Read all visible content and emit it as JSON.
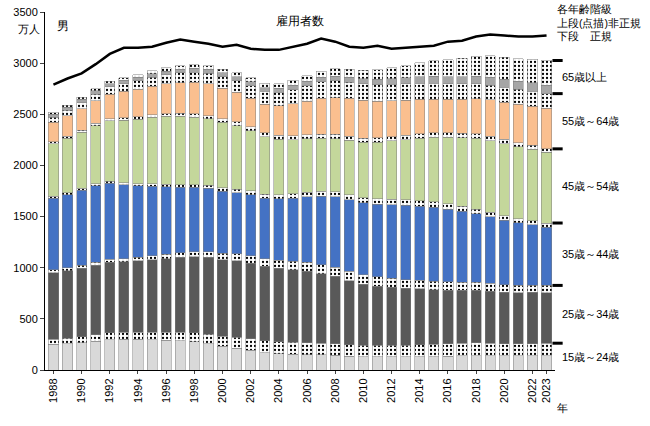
{
  "chart_data": {
    "type": "bar",
    "stacked": true,
    "grid": false,
    "title": "男",
    "y_label": "万人",
    "x_label": "年",
    "notes": [
      "各年齢階級",
      "上段(点描)非正規",
      "下段　正規"
    ],
    "ylim": [
      0,
      3500
    ],
    "yticks": [
      0,
      500,
      1000,
      1500,
      2000,
      2500,
      3000,
      3500
    ],
    "categories": [
      "1988",
      null,
      "1990",
      null,
      "1992",
      null,
      "1994",
      null,
      "1996",
      null,
      "1998",
      null,
      "2000",
      null,
      "2002",
      null,
      "2004",
      null,
      "2006",
      null,
      "2008",
      null,
      "2010",
      null,
      "2012",
      null,
      "2014",
      null,
      "2016",
      null,
      "2018",
      null,
      "2020",
      null,
      "2022",
      "2023"
    ],
    "series": [
      {
        "name": "15歳～24歳",
        "color": "#d9d9d9",
        "values": [
          250,
          255,
          265,
          280,
          295,
          300,
          300,
          295,
          290,
          285,
          275,
          255,
          230,
          215,
          195,
          170,
          160,
          155,
          150,
          150,
          145,
          135,
          130,
          130,
          128,
          128,
          130,
          132,
          135,
          138,
          140,
          140,
          138,
          138,
          138,
          140
        ]
      },
      {
        "name": "15歳～24歳",
        "color": "#ffffff",
        "marker": "dotted",
        "values": [
          50,
          55,
          60,
          65,
          70,
          70,
          70,
          75,
          80,
          85,
          90,
          95,
          100,
          105,
          110,
          115,
          115,
          115,
          115,
          110,
          110,
          110,
          110,
          110,
          112,
          115,
          118,
          120,
          122,
          124,
          125,
          122,
          118,
          118,
          120,
          122
        ]
      },
      {
        "name": "25歳～34歳",
        "color": "#595959",
        "values": [
          650,
          660,
          670,
          680,
          690,
          690,
          700,
          710,
          720,
          730,
          740,
          750,
          750,
          750,
          740,
          730,
          720,
          710,
          700,
          680,
          660,
          630,
          600,
          580,
          570,
          555,
          545,
          535,
          525,
          520,
          515,
          510,
          505,
          500,
          500,
          495
        ]
      },
      {
        "name": "25歳～34歳",
        "color": "#ffffff",
        "marker": "dotted",
        "values": [
          30,
          30,
          30,
          30,
          30,
          30,
          30,
          35,
          40,
          45,
          50,
          55,
          60,
          65,
          70,
          75,
          80,
          85,
          90,
          90,
          90,
          90,
          90,
          90,
          88,
          86,
          85,
          83,
          80,
          78,
          76,
          75,
          74,
          72,
          72,
          70
        ]
      },
      {
        "name": "35歳～44歳",
        "color": "#4472c4",
        "values": [
          700,
          715,
          730,
          745,
          740,
          720,
          700,
          680,
          660,
          640,
          630,
          620,
          610,
          600,
          600,
          590,
          600,
          615,
          640,
          670,
          690,
          700,
          705,
          710,
          720,
          725,
          725,
          720,
          710,
          690,
          670,
          650,
          630,
          610,
          590,
          570
        ]
      },
      {
        "name": "35歳～44歳",
        "color": "#ffffff",
        "marker": "dotted",
        "values": [
          20,
          20,
          20,
          20,
          20,
          20,
          22,
          24,
          25,
          26,
          28,
          30,
          32,
          34,
          36,
          38,
          40,
          42,
          44,
          46,
          48,
          50,
          50,
          52,
          52,
          54,
          54,
          54,
          52,
          50,
          48,
          46,
          44,
          42,
          40,
          40
        ]
      },
      {
        "name": "45歳～54歳",
        "color": "#c4d79b",
        "values": [
          510,
          530,
          550,
          570,
          590,
          610,
          630,
          650,
          665,
          670,
          660,
          650,
          640,
          620,
          590,
          560,
          540,
          530,
          520,
          520,
          520,
          530,
          540,
          555,
          570,
          590,
          610,
          630,
          650,
          670,
          690,
          700,
          705,
          705,
          700,
          690
        ]
      },
      {
        "name": "45歳～54歳",
        "color": "#ffffff",
        "marker": "dotted",
        "values": [
          20,
          20,
          20,
          22,
          22,
          24,
          25,
          26,
          27,
          28,
          30,
          32,
          34,
          36,
          38,
          40,
          40,
          40,
          40,
          40,
          40,
          40,
          42,
          42,
          42,
          44,
          44,
          44,
          44,
          44,
          44,
          42,
          40,
          38,
          36,
          35
        ]
      },
      {
        "name": "55歳～64歳",
        "color": "#fabf8f",
        "values": [
          190,
          200,
          210,
          220,
          240,
          260,
          270,
          280,
          290,
          300,
          310,
          310,
          300,
          290,
          280,
          280,
          290,
          310,
          330,
          350,
          360,
          370,
          370,
          360,
          350,
          340,
          335,
          330,
          330,
          335,
          345,
          355,
          365,
          375,
          385,
          395
        ]
      },
      {
        "name": "55歳～64歳",
        "color": "#ffffff",
        "marker": "dotted",
        "values": [
          50,
          55,
          60,
          65,
          70,
          75,
          80,
          85,
          90,
          95,
          100,
          105,
          110,
          115,
          120,
          125,
          130,
          140,
          150,
          160,
          165,
          160,
          160,
          160,
          160,
          160,
          158,
          155,
          150,
          148,
          146,
          145,
          145,
          145,
          145,
          145
        ]
      },
      {
        "name": "65歳以上",
        "color": "#a6a6a6",
        "values": [
          30,
          30,
          32,
          32,
          34,
          34,
          35,
          36,
          36,
          38,
          38,
          38,
          38,
          38,
          38,
          38,
          40,
          40,
          42,
          44,
          46,
          48,
          50,
          52,
          56,
          60,
          64,
          68,
          70,
          72,
          74,
          76,
          78,
          80,
          82,
          84
        ]
      },
      {
        "name": "65歳以上",
        "color": "#ffffff",
        "marker": "dotted",
        "values": [
          20,
          20,
          22,
          22,
          24,
          25,
          26,
          28,
          30,
          32,
          34,
          36,
          38,
          40,
          42,
          44,
          46,
          50,
          55,
          62,
          70,
          78,
          85,
          95,
          105,
          120,
          135,
          150,
          165,
          180,
          195,
          210,
          215,
          220,
          230,
          240
        ]
      },
      {
        "name": "雇用者数",
        "type": "line",
        "color": "#000000",
        "values": [
          2790,
          2850,
          2900,
          2990,
          3090,
          3150,
          3150,
          3160,
          3200,
          3230,
          3210,
          3190,
          3160,
          3180,
          3140,
          3130,
          3130,
          3160,
          3190,
          3240,
          3210,
          3160,
          3150,
          3170,
          3140,
          3150,
          3160,
          3170,
          3210,
          3220,
          3260,
          3280,
          3270,
          3260,
          3260,
          3270
        ]
      }
    ]
  }
}
